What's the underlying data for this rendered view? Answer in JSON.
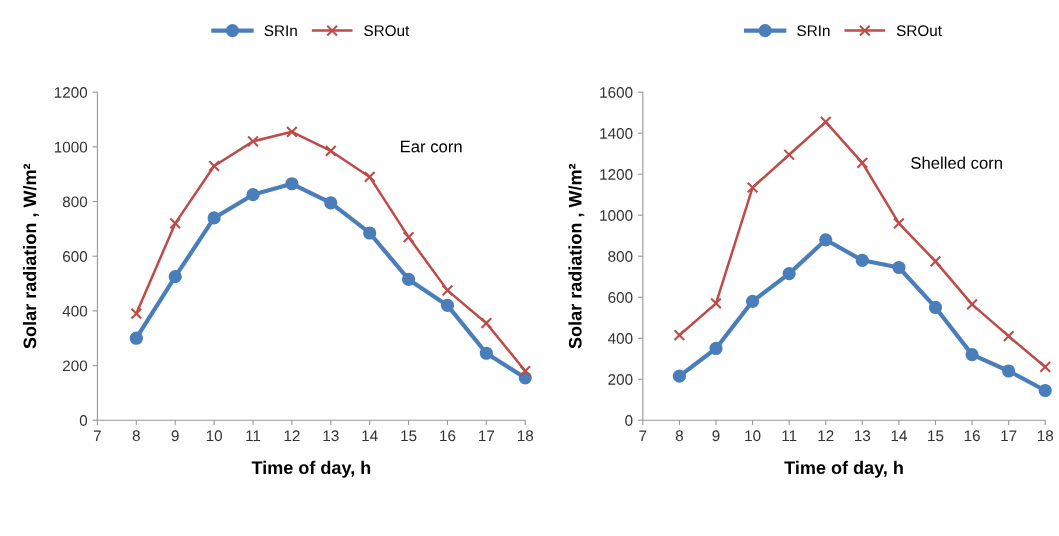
{
  "chart_data": [
    {
      "type": "line",
      "xlabel": "Time of day, h",
      "ylabel": "Solar radiation , W/m²",
      "annotations": [
        "Ear corn"
      ],
      "x": [
        8,
        9,
        10,
        11,
        12,
        13,
        14,
        15,
        16,
        17,
        18
      ],
      "series": [
        {
          "name": "SRIn",
          "color": "#4a7ebb",
          "marker": "circle",
          "values": [
            300,
            525,
            740,
            825,
            865,
            795,
            685,
            515,
            420,
            245,
            155
          ]
        },
        {
          "name": "SROut",
          "color": "#be4b48",
          "marker": "cross",
          "values": [
            390,
            720,
            930,
            1020,
            1055,
            985,
            890,
            670,
            475,
            355,
            180
          ]
        }
      ],
      "xlim": [
        7,
        18
      ],
      "xticks": [
        7,
        8,
        9,
        10,
        11,
        12,
        13,
        14,
        15,
        16,
        17,
        18
      ],
      "ylim": [
        0,
        1200
      ],
      "yticks": [
        0,
        200,
        400,
        600,
        800,
        1000,
        1200
      ],
      "legend": "top"
    },
    {
      "type": "line",
      "xlabel": "Time of day, h",
      "ylabel": "Solar radiation , W/m²",
      "annotations": [
        "Shelled corn"
      ],
      "x": [
        8,
        9,
        10,
        11,
        12,
        13,
        14,
        15,
        16,
        17,
        18
      ],
      "series": [
        {
          "name": "SRIn",
          "color": "#4a7ebb",
          "marker": "circle",
          "values": [
            215,
            350,
            580,
            715,
            880,
            780,
            745,
            550,
            320,
            240,
            145
          ]
        },
        {
          "name": "SROut",
          "color": "#be4b48",
          "marker": "cross",
          "values": [
            415,
            570,
            1135,
            1295,
            1455,
            1255,
            960,
            775,
            565,
            410,
            260
          ]
        }
      ],
      "xlim": [
        7,
        18
      ],
      "xticks": [
        7,
        8,
        9,
        10,
        11,
        12,
        13,
        14,
        15,
        16,
        17,
        18
      ],
      "ylim": [
        0,
        1600
      ],
      "yticks": [
        0,
        200,
        400,
        600,
        800,
        1000,
        1200,
        1400,
        1600
      ],
      "legend": "top"
    }
  ]
}
